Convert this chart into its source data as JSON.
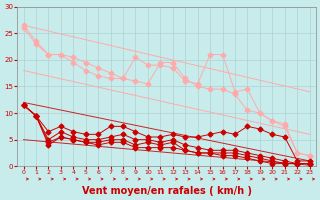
{
  "background_color": "#c8ecec",
  "grid_color": "#b0d0d0",
  "xlabel": "Vent moyen/en rafales ( km/h )",
  "xlabel_color": "#cc0000",
  "xlabel_fontsize": 7,
  "xtick_color": "#cc0000",
  "ytick_color": "#cc0000",
  "xlim": [
    -0.5,
    23.5
  ],
  "ylim": [
    0,
    30
  ],
  "yticks": [
    0,
    5,
    10,
    15,
    20,
    25,
    30
  ],
  "xticks": [
    0,
    1,
    2,
    3,
    4,
    5,
    6,
    7,
    8,
    9,
    10,
    11,
    12,
    13,
    14,
    15,
    16,
    17,
    18,
    19,
    20,
    21,
    22,
    23
  ],
  "series_lines": [
    {
      "color": "#ffaaaa",
      "x": [
        0,
        23
      ],
      "y": [
        26.5,
        14.0
      ],
      "lw": 0.7,
      "marker": null
    },
    {
      "color": "#ffaaaa",
      "x": [
        0,
        23
      ],
      "y": [
        18.0,
        6.0
      ],
      "lw": 0.7,
      "marker": null
    },
    {
      "color": "#cc2222",
      "x": [
        0,
        23
      ],
      "y": [
        12.0,
        1.0
      ],
      "lw": 0.7,
      "marker": null
    },
    {
      "color": "#cc2222",
      "x": [
        0,
        23
      ],
      "y": [
        5.0,
        0.2
      ],
      "lw": 0.7,
      "marker": null
    }
  ],
  "series_markers": [
    {
      "color": "#ffaaaa",
      "x": [
        0,
        1,
        2,
        3,
        4,
        5,
        6,
        7,
        8,
        9,
        10,
        11,
        12,
        13,
        14,
        15,
        16,
        17,
        18,
        19,
        20,
        21,
        22,
        23
      ],
      "y": [
        26.5,
        23.5,
        21.0,
        21.0,
        20.5,
        19.5,
        18.5,
        17.5,
        16.5,
        20.5,
        19.0,
        19.0,
        18.5,
        16.0,
        15.5,
        21.0,
        21.0,
        14.0,
        14.5,
        10.0,
        8.5,
        8.0,
        2.5,
        2.0
      ],
      "lw": 0.7,
      "ms": 2.5,
      "marker": "D"
    },
    {
      "color": "#ffaaaa",
      "x": [
        0,
        1,
        2,
        3,
        4,
        5,
        6,
        7,
        8,
        9,
        10,
        11,
        12,
        13,
        14,
        15,
        16,
        17,
        18,
        19,
        20,
        21,
        22,
        23
      ],
      "y": [
        26.0,
        23.0,
        21.0,
        21.0,
        19.5,
        18.0,
        17.0,
        16.5,
        16.5,
        16.0,
        15.5,
        19.5,
        19.5,
        16.5,
        15.0,
        14.5,
        14.5,
        13.5,
        10.5,
        10.0,
        8.5,
        7.5,
        2.5,
        2.0
      ],
      "lw": 0.7,
      "ms": 2.5,
      "marker": "D"
    },
    {
      "color": "#cc0000",
      "x": [
        0,
        1,
        2,
        3,
        4,
        5,
        6,
        7,
        8,
        9,
        10,
        11,
        12,
        13,
        14,
        15,
        16,
        17,
        18,
        19,
        20,
        21,
        22,
        23
      ],
      "y": [
        11.5,
        9.5,
        6.5,
        7.5,
        6.5,
        6.0,
        6.0,
        7.5,
        7.5,
        6.5,
        5.5,
        5.5,
        6.0,
        5.5,
        5.5,
        6.0,
        6.5,
        6.0,
        7.5,
        7.0,
        6.0,
        5.5,
        1.0,
        1.0
      ],
      "lw": 0.7,
      "ms": 2.5,
      "marker": "D"
    },
    {
      "color": "#cc0000",
      "x": [
        0,
        1,
        2,
        3,
        4,
        5,
        6,
        7,
        8,
        9,
        10,
        11,
        12,
        13,
        14,
        15,
        16,
        17,
        18,
        19,
        20,
        21,
        22,
        23
      ],
      "y": [
        11.5,
        9.5,
        5.0,
        6.5,
        5.5,
        5.0,
        5.0,
        5.5,
        6.0,
        5.0,
        5.0,
        4.5,
        5.0,
        4.0,
        3.5,
        3.0,
        3.0,
        3.0,
        2.5,
        2.0,
        1.5,
        1.0,
        0.5,
        0.5
      ],
      "lw": 0.7,
      "ms": 2.5,
      "marker": "D"
    },
    {
      "color": "#cc0000",
      "x": [
        0,
        1,
        2,
        3,
        4,
        5,
        6,
        7,
        8,
        9,
        10,
        11,
        12,
        13,
        14,
        15,
        16,
        17,
        18,
        19,
        20,
        21,
        22,
        23
      ],
      "y": [
        11.5,
        9.5,
        4.5,
        5.5,
        5.0,
        4.5,
        4.5,
        5.0,
        5.0,
        4.0,
        4.5,
        4.0,
        4.5,
        3.0,
        2.5,
        2.5,
        2.5,
        2.5,
        2.0,
        1.5,
        1.0,
        0.5,
        0.5,
        0.5
      ],
      "lw": 0.7,
      "ms": 2.5,
      "marker": "D"
    },
    {
      "color": "#cc0000",
      "x": [
        0,
        1,
        2,
        3,
        4,
        5,
        6,
        7,
        8,
        9,
        10,
        11,
        12,
        13,
        14,
        15,
        16,
        17,
        18,
        19,
        20,
        21,
        22,
        23
      ],
      "y": [
        11.5,
        9.5,
        4.0,
        5.5,
        5.0,
        4.5,
        4.0,
        4.5,
        4.5,
        3.5,
        3.5,
        3.5,
        3.5,
        3.0,
        2.5,
        2.5,
        2.0,
        2.0,
        1.5,
        1.0,
        0.5,
        0.5,
        0.5,
        0.5
      ],
      "lw": 0.7,
      "ms": 2.5,
      "marker": "D"
    }
  ],
  "arrows_x": [
    0,
    1,
    2,
    3,
    4,
    5,
    6,
    7,
    8,
    9,
    10,
    11,
    12,
    13,
    14,
    15,
    16,
    17,
    18,
    19,
    20,
    21,
    22,
    23
  ],
  "arrow_color": "#cc0000"
}
